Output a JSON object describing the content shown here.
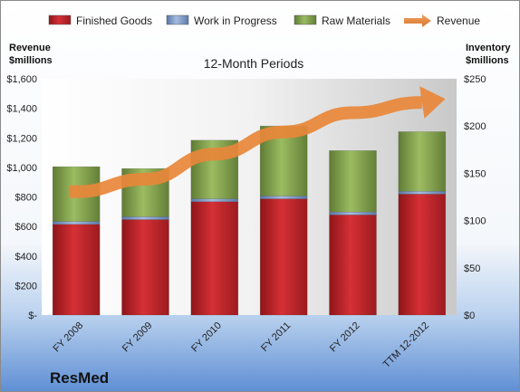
{
  "chart_data": {
    "type": "bar",
    "stacked": true,
    "subtitle": "12-Month Periods",
    "company": "ResMed",
    "left_axis_title": [
      "Revenue",
      "$millions"
    ],
    "right_axis_title": [
      "Inventory",
      "$millions"
    ],
    "categories": [
      "FY 2008",
      "FY 2009",
      "FY 2010",
      "FY 2011",
      "FY 2012",
      "TTM 12-2012"
    ],
    "left_ticks": [
      "$-",
      "$200",
      "$400",
      "$600",
      "$800",
      "$1,000",
      "$1,200",
      "$1,400",
      "$1,600"
    ],
    "right_ticks": [
      "$0",
      "$50",
      "$100",
      "$150",
      "$200",
      "$250"
    ],
    "ylim_left": [
      0,
      1600
    ],
    "ylim_right": [
      0,
      250
    ],
    "series": [
      {
        "name": "Finished Goods",
        "axis": "right",
        "color": "#c0262b",
        "values": [
          96,
          101,
          120,
          123,
          106,
          128
        ]
      },
      {
        "name": "Work in Progress",
        "axis": "right",
        "color": "#7f9bc9",
        "values": [
          3,
          3,
          3,
          3,
          3,
          3
        ]
      },
      {
        "name": "Raw Materials",
        "axis": "right",
        "color": "#86a44f",
        "values": [
          58,
          51,
          62,
          74,
          65,
          63
        ]
      }
    ],
    "line_series": {
      "name": "Revenue",
      "axis": "left",
      "color": "#e8873a",
      "values": [
        835,
        920,
        1090,
        1240,
        1370,
        1440
      ]
    },
    "grid": false,
    "legend_position": "top"
  }
}
